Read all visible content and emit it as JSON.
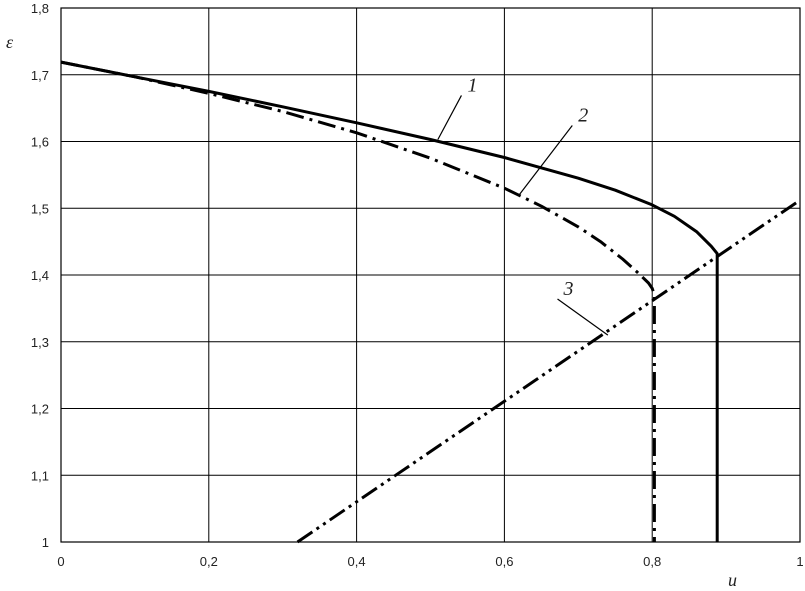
{
  "chart_data": {
    "type": "line",
    "title": "",
    "xlabel": "u",
    "ylabel": "ε",
    "xlim": [
      0,
      1
    ],
    "ylim": [
      1,
      1.8
    ],
    "grid": true,
    "legend": "none",
    "x_ticks": [
      0,
      0.2,
      0.4,
      0.6,
      0.8,
      1
    ],
    "x_tick_labels": [
      "0",
      "0,2",
      "0,4",
      "0,6",
      "0,8",
      "1"
    ],
    "y_ticks": [
      1,
      1.1,
      1.2,
      1.3,
      1.4,
      1.5,
      1.6,
      1.7,
      1.8
    ],
    "y_tick_labels": [
      "1",
      "1,1",
      "1,2",
      "1,3",
      "1,4",
      "1,5",
      "1,6",
      "1,7",
      "1,8"
    ],
    "series": [
      {
        "label": "1",
        "style": "solid",
        "x": [
          0,
          0.1,
          0.2,
          0.3,
          0.4,
          0.5,
          0.6,
          0.7,
          0.75,
          0.8,
          0.83,
          0.86,
          0.88,
          0.888,
          0.888,
          0.888
        ],
        "y": [
          1.719,
          1.697,
          1.675,
          1.652,
          1.628,
          1.603,
          1.576,
          1.545,
          1.527,
          1.505,
          1.488,
          1.465,
          1.443,
          1.432,
          1.2,
          1.0
        ],
        "label_at": [
          0.55,
          1.675
        ],
        "leader_to": [
          0.51,
          1.603
        ]
      },
      {
        "label": "2",
        "style": "dash-dot",
        "x": [
          0,
          0.1,
          0.2,
          0.3,
          0.4,
          0.5,
          0.6,
          0.65,
          0.7,
          0.73,
          0.76,
          0.78,
          0.795,
          0.8,
          0.803,
          0.803
        ],
        "y": [
          1.719,
          1.697,
          1.672,
          1.645,
          1.613,
          1.575,
          1.53,
          1.503,
          1.472,
          1.45,
          1.424,
          1.404,
          1.388,
          1.38,
          1.37,
          1.0
        ],
        "label_at": [
          0.7,
          1.63
        ],
        "leader_to": [
          0.62,
          1.52
        ]
      },
      {
        "label": "3",
        "style": "dash-dot-dot",
        "x": [
          0.32,
          1.0
        ],
        "y": [
          1.0,
          1.512
        ],
        "label_at": [
          0.68,
          1.37
        ],
        "leader_to": [
          0.74,
          1.31
        ]
      }
    ]
  }
}
